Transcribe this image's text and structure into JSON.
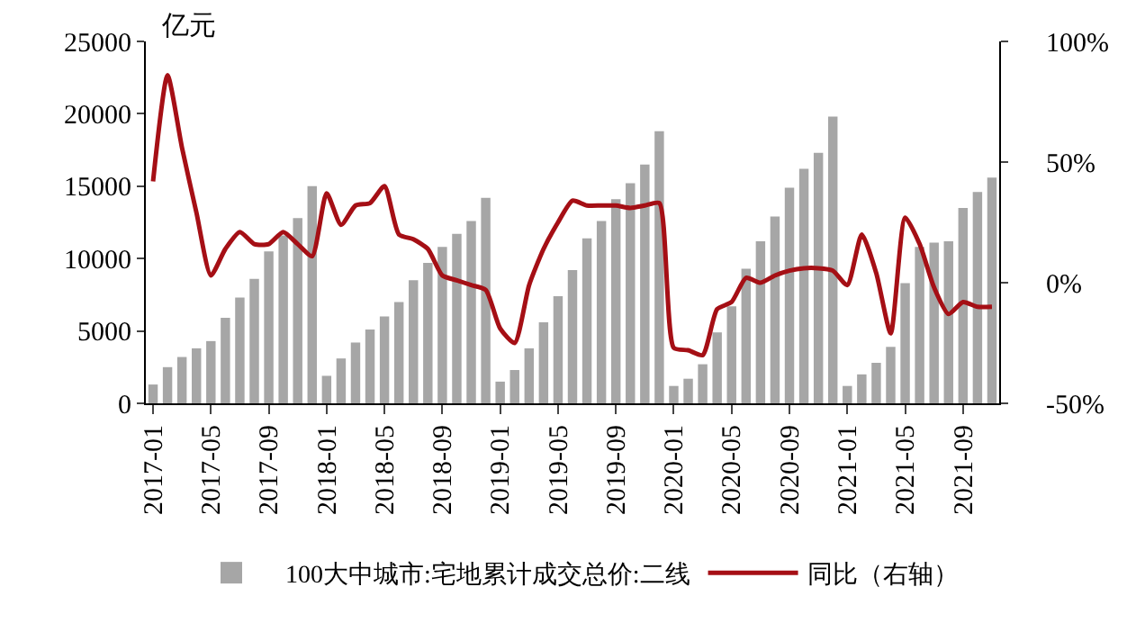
{
  "chart_data": {
    "type": "bar",
    "ylabel": "亿元",
    "categories": [
      "2017-01",
      null,
      null,
      null,
      "2017-05",
      null,
      null,
      null,
      "2017-09",
      null,
      null,
      null,
      "2018-01",
      null,
      null,
      null,
      "2018-05",
      null,
      null,
      null,
      "2018-09",
      null,
      null,
      null,
      "2019-01",
      null,
      null,
      null,
      "2019-05",
      null,
      null,
      null,
      "2019-09",
      null,
      null,
      null,
      "2020-01",
      null,
      null,
      null,
      "2020-05",
      null,
      null,
      null,
      "2020-09",
      null,
      null,
      null,
      "2021-01",
      null,
      null,
      null,
      "2021-05",
      null,
      null,
      null,
      "2021-09",
      null,
      null
    ],
    "series": [
      {
        "name": "100大中城市:宅地累计成交总价:二线",
        "color": "#a6a6a6",
        "values": [
          1300,
          2500,
          3200,
          3800,
          4300,
          5900,
          7300,
          8600,
          10500,
          11600,
          12800,
          15000,
          1900,
          3100,
          4200,
          5100,
          6000,
          7000,
          8500,
          9700,
          10800,
          11700,
          12600,
          14200,
          1500,
          2300,
          3800,
          5600,
          7400,
          9200,
          11400,
          12600,
          14100,
          15200,
          16500,
          18800,
          1200,
          1700,
          2700,
          4900,
          6700,
          9300,
          11200,
          12900,
          14900,
          16200,
          17300,
          19800,
          1200,
          2000,
          2800,
          3900,
          8300,
          10800,
          11100,
          11200,
          13500,
          14600,
          15600
        ]
      },
      {
        "name": "同比（右轴）",
        "type": "line",
        "axis": "y2",
        "color": "#a50f15",
        "values": [
          42,
          86,
          56,
          29,
          3,
          14,
          21,
          16,
          16,
          21,
          16,
          11,
          37,
          24,
          32,
          33,
          40,
          20,
          18,
          14,
          3,
          1,
          -1,
          -3,
          -19,
          -25,
          -1,
          14,
          25,
          34,
          32,
          32,
          32,
          31,
          32,
          33,
          -27,
          -28,
          -30,
          -11,
          -8,
          2,
          0,
          3,
          5,
          6,
          6,
          5,
          -1,
          20,
          4,
          -21,
          27,
          16,
          -2,
          -13,
          -8,
          -10,
          -10
        ]
      }
    ],
    "ylim": [
      0,
      25000
    ],
    "yticks": [
      0,
      5000,
      10000,
      15000,
      20000,
      25000
    ],
    "y2lim": [
      -50,
      100
    ],
    "y2ticks": [
      {
        "value": -50,
        "label": "-50%"
      },
      {
        "value": 0,
        "label": "0%"
      },
      {
        "value": 50,
        "label": "50%"
      },
      {
        "value": 100,
        "label": "100%"
      }
    ],
    "grid": false,
    "legend": "bottom",
    "marker": "none",
    "line_style": "solid"
  }
}
